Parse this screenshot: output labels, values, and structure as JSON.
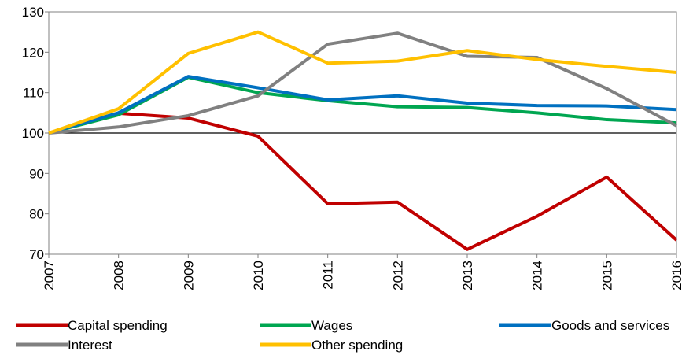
{
  "chart_data": {
    "type": "line",
    "x": [
      2007,
      2008,
      2009,
      2010,
      2011,
      2012,
      2013,
      2014,
      2015,
      2016
    ],
    "series": [
      {
        "name": "Capital spending",
        "color": "#c00000",
        "values": [
          100,
          104.9,
          103.7,
          99.2,
          82.5,
          82.9,
          71.2,
          79.4,
          89.1,
          73.5
        ]
      },
      {
        "name": "Wages",
        "color": "#00a651",
        "values": [
          100,
          104.5,
          113.8,
          110,
          108,
          106.5,
          106.3,
          105,
          103.3,
          102.5
        ]
      },
      {
        "name": "Goods and services",
        "color": "#0070c0",
        "values": [
          100,
          105,
          114,
          111.2,
          108.2,
          109.2,
          107.4,
          106.8,
          106.7,
          105.8
        ]
      },
      {
        "name": "Interest",
        "color": "#808080",
        "values": [
          100,
          101.5,
          104.3,
          109.2,
          122,
          124.7,
          119,
          118.7,
          111,
          101.8
        ]
      },
      {
        "name": "Other spending",
        "color": "#ffc000",
        "values": [
          100,
          106,
          119.7,
          125,
          117.3,
          117.8,
          120.4,
          118.2,
          116.5,
          115
        ]
      }
    ],
    "xlim": [
      2007,
      2016
    ],
    "ylim": [
      70,
      130
    ],
    "yticks": [
      70,
      80,
      90,
      100,
      110,
      120,
      130
    ],
    "reference_line": 100
  }
}
